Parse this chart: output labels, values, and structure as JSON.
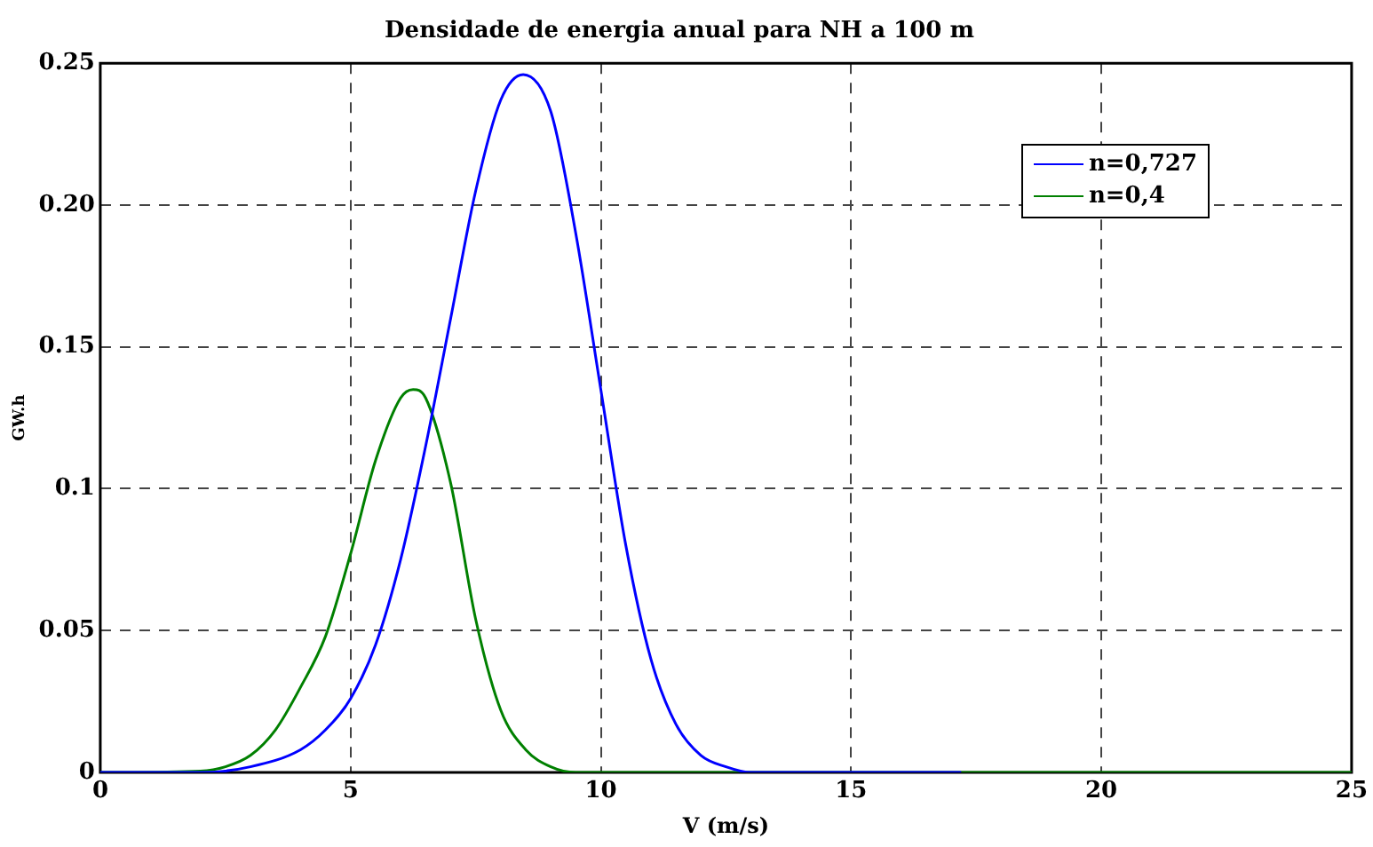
{
  "chart_data": {
    "type": "line",
    "title": "Densidade de energia anual para NH a 100 m",
    "xlabel": "V (m/s)",
    "ylabel": "GW.h",
    "xlim": [
      0,
      25
    ],
    "xticks": [
      0,
      5,
      10,
      15,
      20,
      25
    ],
    "ylim": [
      0,
      0.25
    ],
    "yticks": [
      0,
      0.05,
      0.1,
      0.15,
      {
        "value": 0.2,
        "label": "0.20"
      },
      0.25
    ],
    "grid": true,
    "line_style": "solid",
    "legend": "top right",
    "series": [
      {
        "name": "n=0,727",
        "color": "#0000ff",
        "x": [
          0,
          2,
          3,
          4,
          4.5,
          5,
          5.5,
          6,
          6.5,
          7,
          7.5,
          8,
          8.45,
          9,
          9.5,
          10,
          10.5,
          11,
          11.5,
          12,
          12.5,
          13,
          17.2
        ],
        "values": [
          0,
          0,
          0.002,
          0.008,
          0.015,
          0.026,
          0.045,
          0.075,
          0.115,
          0.16,
          0.205,
          0.237,
          0.246,
          0.233,
          0.19,
          0.135,
          0.08,
          0.04,
          0.017,
          0.006,
          0.002,
          0,
          0
        ]
      },
      {
        "name": "n=0,4",
        "color": "#008000",
        "x": [
          0,
          2,
          2.5,
          3,
          3.5,
          4,
          4.5,
          5,
          5.5,
          6,
          6.25,
          6.5,
          7,
          7.5,
          8,
          8.5,
          9,
          9.5,
          25
        ],
        "values": [
          0,
          0.0005,
          0.002,
          0.006,
          0.015,
          0.03,
          0.048,
          0.077,
          0.11,
          0.132,
          0.135,
          0.132,
          0.102,
          0.054,
          0.022,
          0.008,
          0.002,
          0,
          0
        ]
      }
    ]
  }
}
